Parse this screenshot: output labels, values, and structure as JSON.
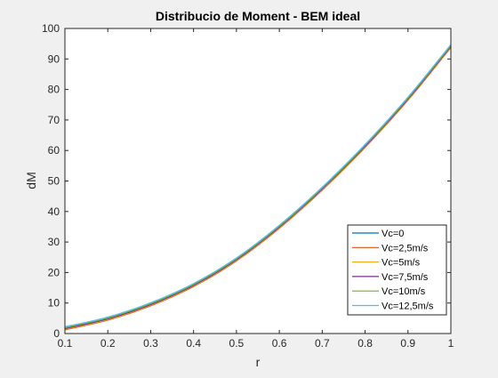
{
  "chart_data": {
    "type": "line",
    "title": "Distribucio de Moment - BEM ideal",
    "xlabel": "r",
    "ylabel": "dM",
    "xlim": [
      0.1,
      1
    ],
    "ylim": [
      0,
      100
    ],
    "xticks": [
      "0.1",
      "0.2",
      "0.3",
      "0.4",
      "0.5",
      "0.6",
      "0.7",
      "0.8",
      "0.9",
      "1"
    ],
    "yticks": [
      "0",
      "10",
      "20",
      "30",
      "40",
      "50",
      "60",
      "70",
      "80",
      "90",
      "100"
    ],
    "grid": false,
    "legend_position": "bottom-right",
    "x": [
      0.1,
      0.2,
      0.3,
      0.4,
      0.5,
      0.6,
      0.7,
      0.8,
      0.9,
      1.0
    ],
    "series": [
      {
        "name": "Vc=0",
        "color": "#0072bd",
        "values": [
          1.7,
          4.9,
          9.6,
          15.9,
          24.3,
          35.0,
          47.5,
          61.5,
          77.0,
          94.2
        ]
      },
      {
        "name": "Vc=2,5m/s",
        "color": "#d95319",
        "values": [
          1.2,
          4.4,
          9.1,
          15.4,
          23.8,
          34.5,
          47.0,
          61.0,
          76.5,
          93.7
        ]
      },
      {
        "name": "Vc=5m/s",
        "color": "#edb120",
        "values": [
          1.4,
          4.6,
          9.3,
          15.6,
          24.0,
          34.7,
          47.2,
          61.2,
          76.7,
          93.9
        ]
      },
      {
        "name": "Vc=7,5m/s",
        "color": "#7e2f8e",
        "values": [
          1.6,
          4.8,
          9.5,
          15.8,
          24.2,
          34.9,
          47.4,
          61.4,
          76.9,
          94.1
        ]
      },
      {
        "name": "Vc=10m/s",
        "color": "#77ac30",
        "values": [
          1.9,
          5.1,
          9.8,
          16.1,
          24.5,
          35.2,
          47.7,
          61.7,
          77.2,
          94.4
        ]
      },
      {
        "name": "Vc=12,5m/s",
        "color": "#4dbeee",
        "values": [
          2.2,
          5.4,
          10.1,
          16.4,
          24.8,
          35.5,
          48.0,
          62.0,
          77.5,
          94.7
        ]
      }
    ]
  }
}
